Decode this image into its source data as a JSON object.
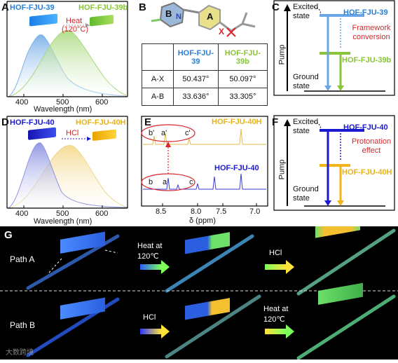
{
  "panelA": {
    "label": "A",
    "legend1": "HOF-FJU-39",
    "legend2": "HOF-FJU-39b",
    "heat": "Heat",
    "heat_temp": "(120°C)",
    "xlabel": "Wavelength (nm)",
    "xticks": [
      "400",
      "500",
      "600"
    ],
    "colors": {
      "series1": "#7fb2e8",
      "series2": "#a9d97a"
    }
  },
  "panelB": {
    "label": "B",
    "atoms": {
      "B": "B",
      "A": "A",
      "X": "X",
      "N": "N"
    },
    "table": {
      "headers": [
        "",
        "HOF-FJU-39",
        "HOF-FJU-39b"
      ],
      "rows": [
        [
          "A-X",
          "50.437°",
          "50.097°"
        ],
        [
          "A-B",
          "33.636°",
          "33.305°"
        ]
      ]
    }
  },
  "panelC": {
    "label": "C",
    "excited": "Excited state",
    "ground": "Ground state",
    "pump": "Pump",
    "top": "HOF-FJU-39",
    "middle": "HOF-FJU-39b",
    "note": "Framework conversion"
  },
  "panelD": {
    "label": "D",
    "legend1": "HOF-FJU-40",
    "legend2": "HOF-FJU-40H",
    "hcl": "HCl",
    "xlabel": "Wavelength (nm)",
    "xticks": [
      "400",
      "500",
      "600"
    ],
    "colors": {
      "series1": "#8f95e0",
      "series2": "#f0d68a"
    }
  },
  "panelE": {
    "label": "E",
    "top_label": "HOF-FJU-40H",
    "bottom_label": "HOF-FJU-40",
    "peaks_top": [
      "b'",
      "a'",
      "c'"
    ],
    "peaks_bottom": [
      "b",
      "a",
      "c"
    ],
    "xlabel": "δ (ppm)",
    "xticks": [
      "8.5",
      "8.0",
      "7.5",
      "7.0"
    ]
  },
  "panelF": {
    "label": "F",
    "excited": "Excited state",
    "ground": "Ground state",
    "pump": "Pump",
    "top": "HOF-FJU-40",
    "middle": "HOF-FJU-40H",
    "note": "Protonation effect"
  },
  "panelG": {
    "label": "G",
    "pathA": "Path A",
    "pathB": "Path B",
    "heat1": "Heat at",
    "heat1b": "120℃",
    "hcl1": "HCl",
    "hcl2": "HCl",
    "heat2": "Heat at",
    "heat2b": "120℃"
  },
  "watermark": "大数跨境"
}
